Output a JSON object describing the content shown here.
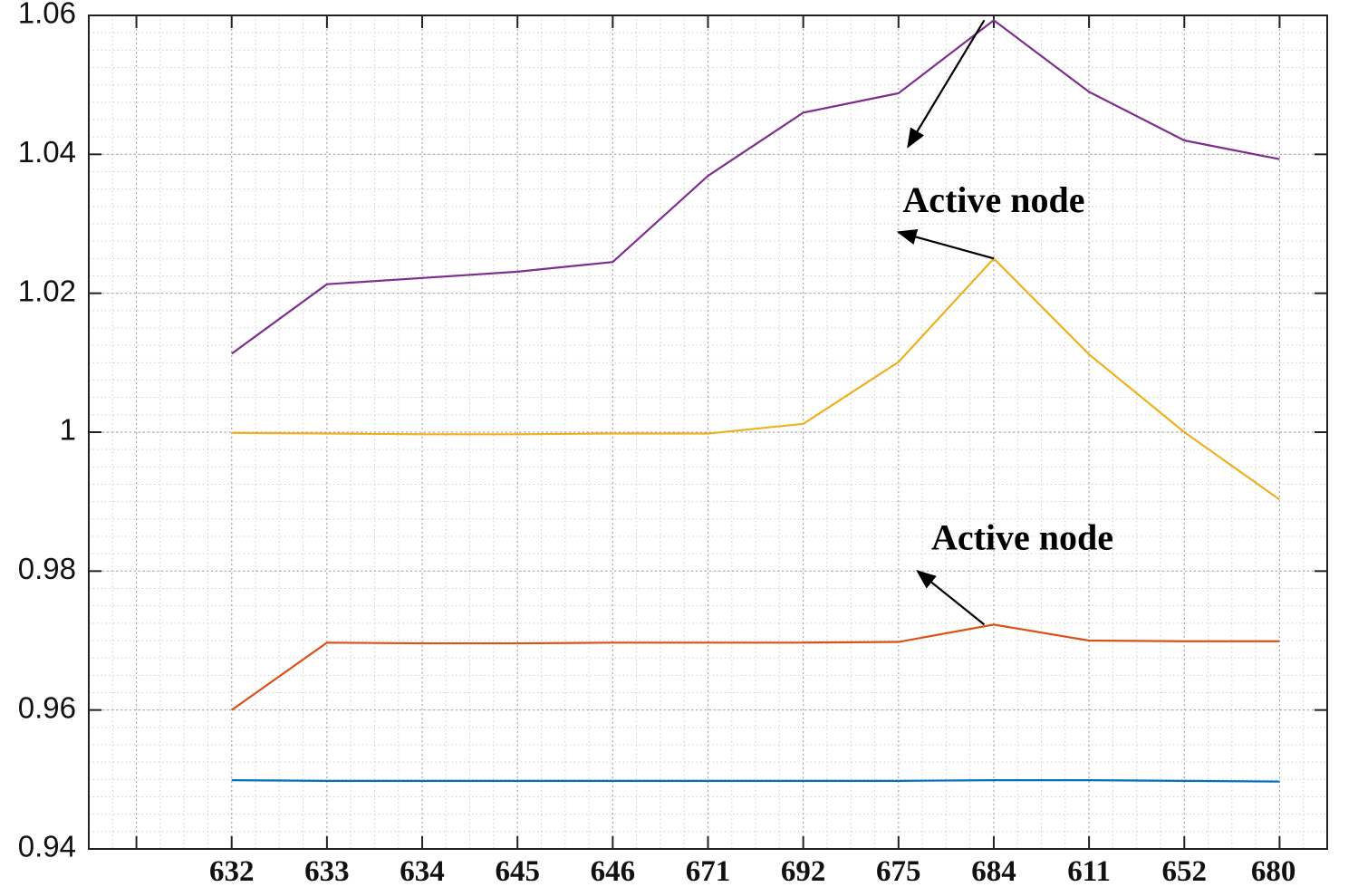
{
  "chart_data": {
    "type": "line",
    "title": "",
    "xlabel": "",
    "ylabel": "",
    "categories": [
      "632",
      "633",
      "634",
      "645",
      "646",
      "671",
      "692",
      "675",
      "684",
      "611",
      "652",
      "680"
    ],
    "x_positions": [
      1,
      2,
      3,
      4,
      5,
      6,
      7,
      8,
      9,
      10,
      11,
      12
    ],
    "xlim": [
      -0.5,
      12.5
    ],
    "ylim": [
      0.94,
      1.06
    ],
    "yticks": [
      0.94,
      0.96,
      0.98,
      1.0,
      1.02,
      1.04,
      1.06
    ],
    "ytick_labels": [
      "0.94",
      "0.96",
      "0.98",
      "1",
      "1.02",
      "1.04",
      "1.06"
    ],
    "minor_grid_step": 0.0025,
    "grid": true,
    "series": [
      {
        "color": "#7E2F8E",
        "values": [
          1.0113,
          1.0213,
          1.0222,
          1.0231,
          1.0245,
          1.0369,
          1.046,
          1.0488,
          1.0593,
          1.049,
          1.042,
          1.0393
        ]
      },
      {
        "color": "#EDB120",
        "values": [
          0.9999,
          0.9998,
          0.9997,
          0.9997,
          0.9998,
          0.9998,
          1.0012,
          1.0101,
          1.025,
          1.0112,
          1.0,
          0.9903
        ]
      },
      {
        "color": "#D95319",
        "values": [
          0.96,
          0.9697,
          0.9696,
          0.9696,
          0.9697,
          0.9697,
          0.9697,
          0.9698,
          0.9723,
          0.97,
          0.9699,
          0.9699
        ]
      },
      {
        "color": "#0072BD",
        "values": [
          0.9499,
          0.9498,
          0.9498,
          0.9498,
          0.9498,
          0.9498,
          0.9498,
          0.9498,
          0.9499,
          0.9499,
          0.9498,
          0.9497
        ]
      }
    ],
    "annotations": [
      {
        "text": "Active node",
        "text_at": [
          9.0,
          1.0329
        ],
        "arrow_tail": [
          9.0,
          1.025
        ],
        "arrow_head": [
          8.0,
          1.0288
        ]
      },
      {
        "text": "Active node",
        "text_at": [
          9.3,
          0.9843
        ],
        "arrow_tail": [
          8.9,
          0.9723
        ],
        "arrow_head": [
          8.2,
          0.98
        ]
      },
      {
        "text": "",
        "arrow_tail": [
          8.9,
          1.0593
        ],
        "arrow_head": [
          8.1,
          1.0411
        ]
      }
    ]
  }
}
